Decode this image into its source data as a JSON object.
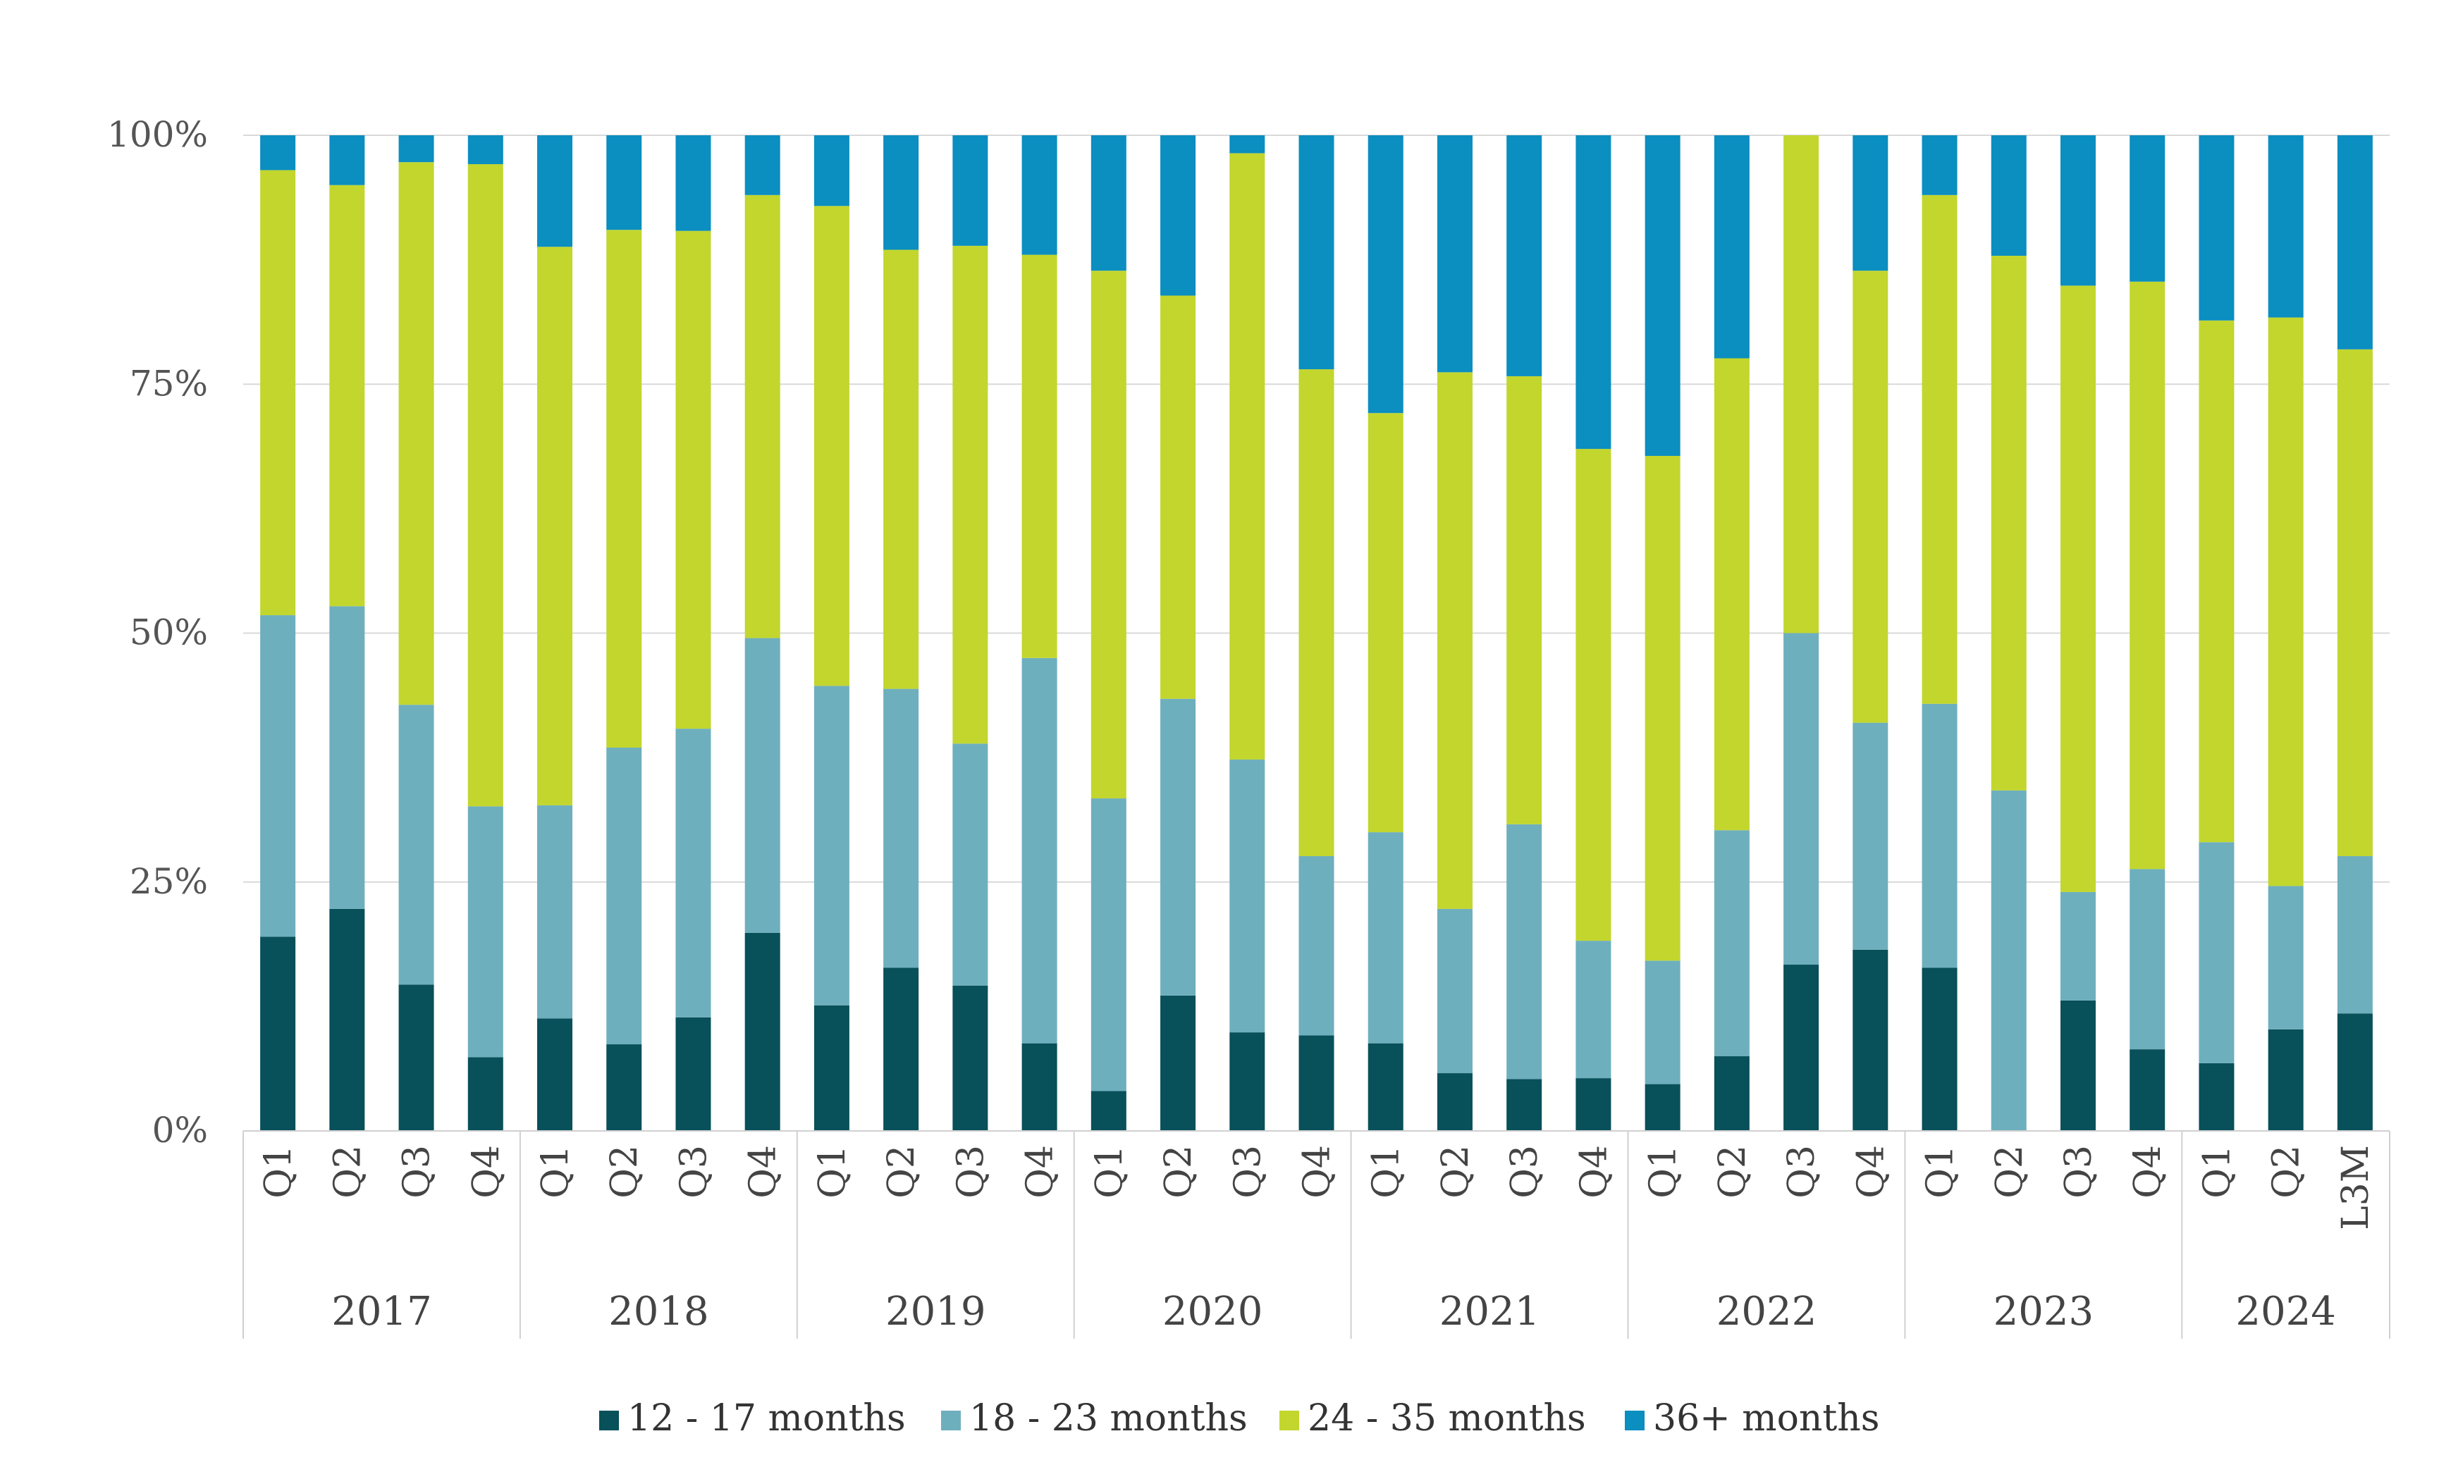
{
  "chart_data": {
    "type": "bar",
    "stacked": true,
    "percent": true,
    "title": "",
    "xlabel": "",
    "ylabel": "",
    "ylim": [
      0,
      100
    ],
    "yticks": [
      "0%",
      "25%",
      "50%",
      "75%",
      "100%"
    ],
    "grid": true,
    "legend_position": "bottom",
    "groups": [
      {
        "label": "2017",
        "categories": [
          "Q1",
          "Q2",
          "Q3",
          "Q4"
        ]
      },
      {
        "label": "2018",
        "categories": [
          "Q1",
          "Q2",
          "Q3",
          "Q4"
        ]
      },
      {
        "label": "2019",
        "categories": [
          "Q1",
          "Q2",
          "Q3",
          "Q4"
        ]
      },
      {
        "label": "2020",
        "categories": [
          "Q1",
          "Q2",
          "Q3",
          "Q4"
        ]
      },
      {
        "label": "2021",
        "categories": [
          "Q1",
          "Q2",
          "Q3",
          "Q4"
        ]
      },
      {
        "label": "2022",
        "categories": [
          "Q1",
          "Q2",
          "Q3",
          "Q4"
        ]
      },
      {
        "label": "2023",
        "categories": [
          "Q1",
          "Q2",
          "Q3",
          "Q4"
        ]
      },
      {
        "label": "2024",
        "categories": [
          "Q1",
          "Q2",
          "L3M"
        ]
      }
    ],
    "series": [
      {
        "name": "12 - 17 months",
        "color": "#08505a",
        "values": [
          19.5,
          22.3,
          14.7,
          7.4,
          11.3,
          8.7,
          11.4,
          19.9,
          12.6,
          16.4,
          14.6,
          8.8,
          4.0,
          13.6,
          9.9,
          9.6,
          8.8,
          5.8,
          5.2,
          5.3,
          4.7,
          7.5,
          16.7,
          18.2,
          16.4,
          0.0,
          13.1,
          8.2,
          6.8,
          10.2,
          11.8
        ]
      },
      {
        "name": "18 - 23 months",
        "color": "#6eafbe",
        "values": [
          32.3,
          30.4,
          28.1,
          25.2,
          21.4,
          29.8,
          29.0,
          29.6,
          32.1,
          28.0,
          24.3,
          38.7,
          29.4,
          29.8,
          27.4,
          18.0,
          21.2,
          16.5,
          25.6,
          13.8,
          12.4,
          22.7,
          33.3,
          22.8,
          26.5,
          34.2,
          10.9,
          18.1,
          22.2,
          14.4,
          15.8
        ]
      },
      {
        "name": "24 - 35 months",
        "color": "#c2d62e",
        "values": [
          44.7,
          42.3,
          54.5,
          64.5,
          56.1,
          52.0,
          50.0,
          44.5,
          48.2,
          44.1,
          50.0,
          40.5,
          53.0,
          40.5,
          60.9,
          48.9,
          42.1,
          53.9,
          45.0,
          49.4,
          50.7,
          47.4,
          50.0,
          45.4,
          51.1,
          53.7,
          60.9,
          59.0,
          52.4,
          57.1,
          50.9
        ]
      },
      {
        "name": "36+ months",
        "color": "#0b8ec0",
        "values": [
          3.5,
          5.0,
          2.7,
          2.9,
          11.2,
          9.5,
          9.6,
          6.0,
          7.1,
          11.5,
          11.1,
          12.0,
          13.6,
          16.1,
          1.8,
          23.5,
          27.9,
          23.8,
          24.2,
          31.5,
          32.2,
          22.4,
          0.0,
          13.6,
          6.0,
          12.1,
          15.1,
          14.7,
          18.6,
          18.3,
          21.5
        ]
      }
    ]
  }
}
